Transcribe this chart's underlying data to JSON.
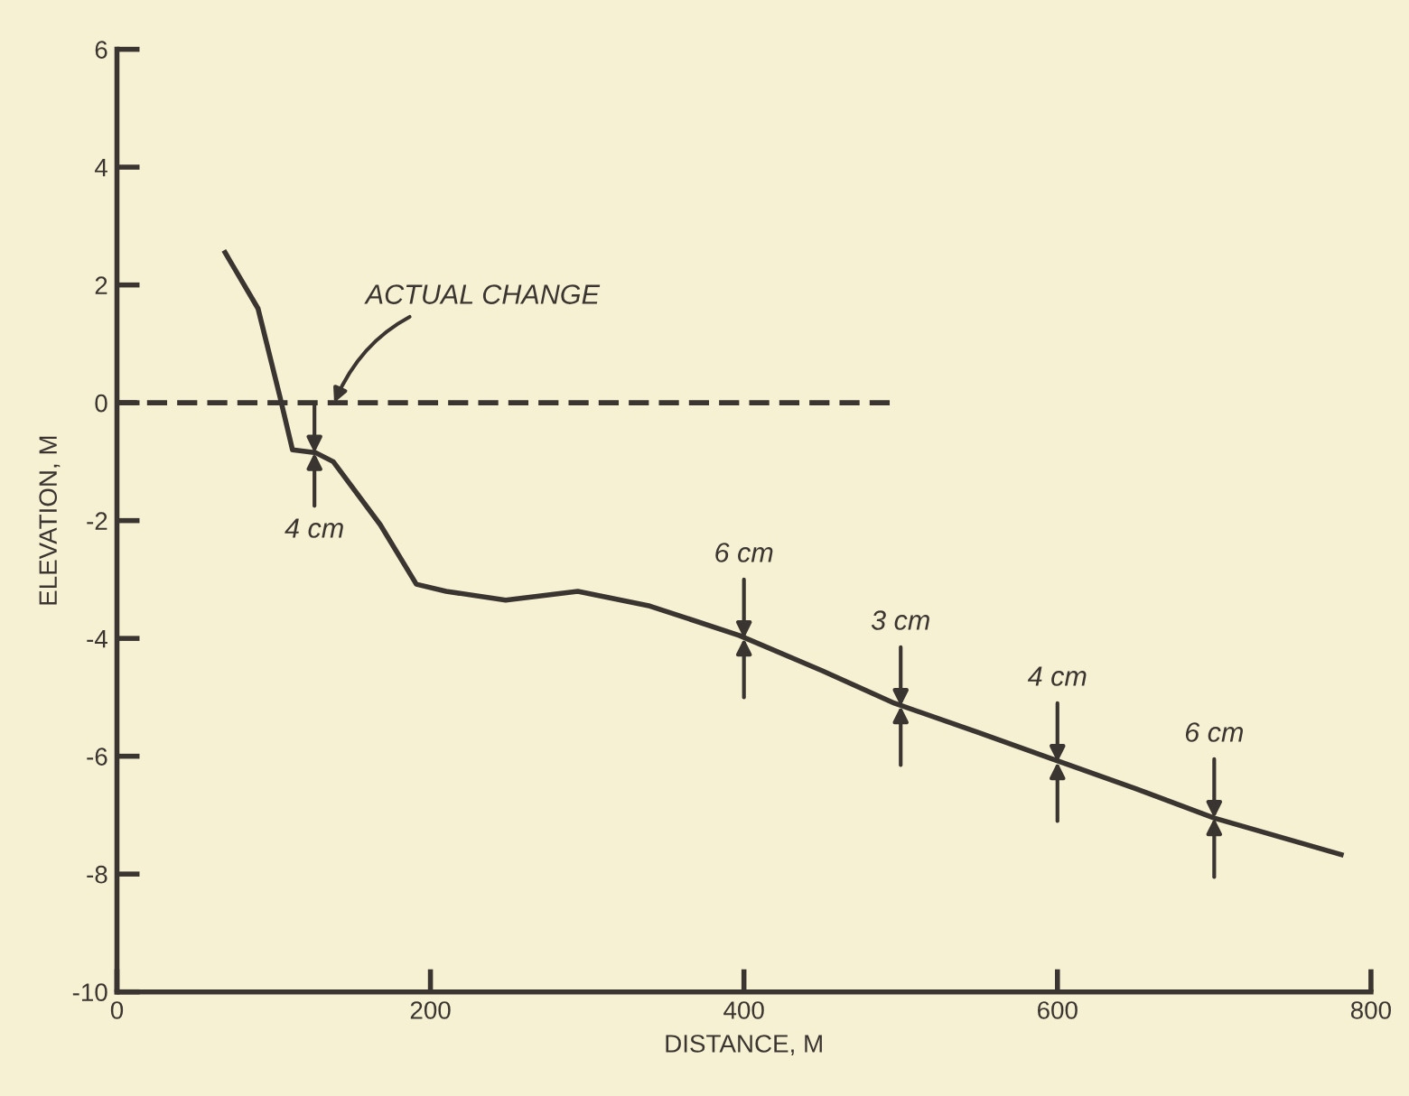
{
  "chart_data": {
    "type": "line",
    "xlabel": "DISTANCE, M",
    "ylabel": "ELEVATION, M",
    "xlim": [
      0,
      800
    ],
    "ylim": [
      -10,
      6
    ],
    "xticks": [
      0,
      200,
      400,
      600,
      800
    ],
    "yticks": [
      -10,
      -8,
      -6,
      -4,
      -2,
      0,
      2,
      4,
      6
    ],
    "grid": false,
    "legend": false,
    "marker": "none",
    "series": [
      {
        "color": "#3a3530",
        "line_style": "solid",
        "x": [
          69,
          90,
          104,
          112,
          127,
          138,
          168,
          191,
          210,
          248,
          294,
          340,
          397,
          450,
          496,
          550,
          597,
          650,
          700,
          781
        ],
        "values": [
          2.55,
          1.6,
          0.1,
          -0.8,
          -0.85,
          -1.0,
          -2.07,
          -3.08,
          -3.2,
          -3.35,
          -3.2,
          -3.45,
          -3.95,
          -4.55,
          -5.1,
          -5.6,
          -6.05,
          -6.55,
          -7.05,
          -7.67
        ]
      },
      {
        "name": "ACTUAL CHANGE",
        "color": "#3a3530",
        "line_style": "dashed",
        "x": [
          0,
          495
        ],
        "values": [
          0,
          0
        ]
      }
    ],
    "annotations": [
      {
        "text": "4 cm",
        "x": 126,
        "y": -0.85
      },
      {
        "text": "6 cm",
        "x": 400,
        "y": -4
      },
      {
        "text": "3 cm",
        "x": 500,
        "y": -5.15
      },
      {
        "text": "4 cm",
        "x": 600,
        "y": -6.1
      },
      {
        "text": "6 cm",
        "x": 700,
        "y": -7.05
      }
    ]
  }
}
